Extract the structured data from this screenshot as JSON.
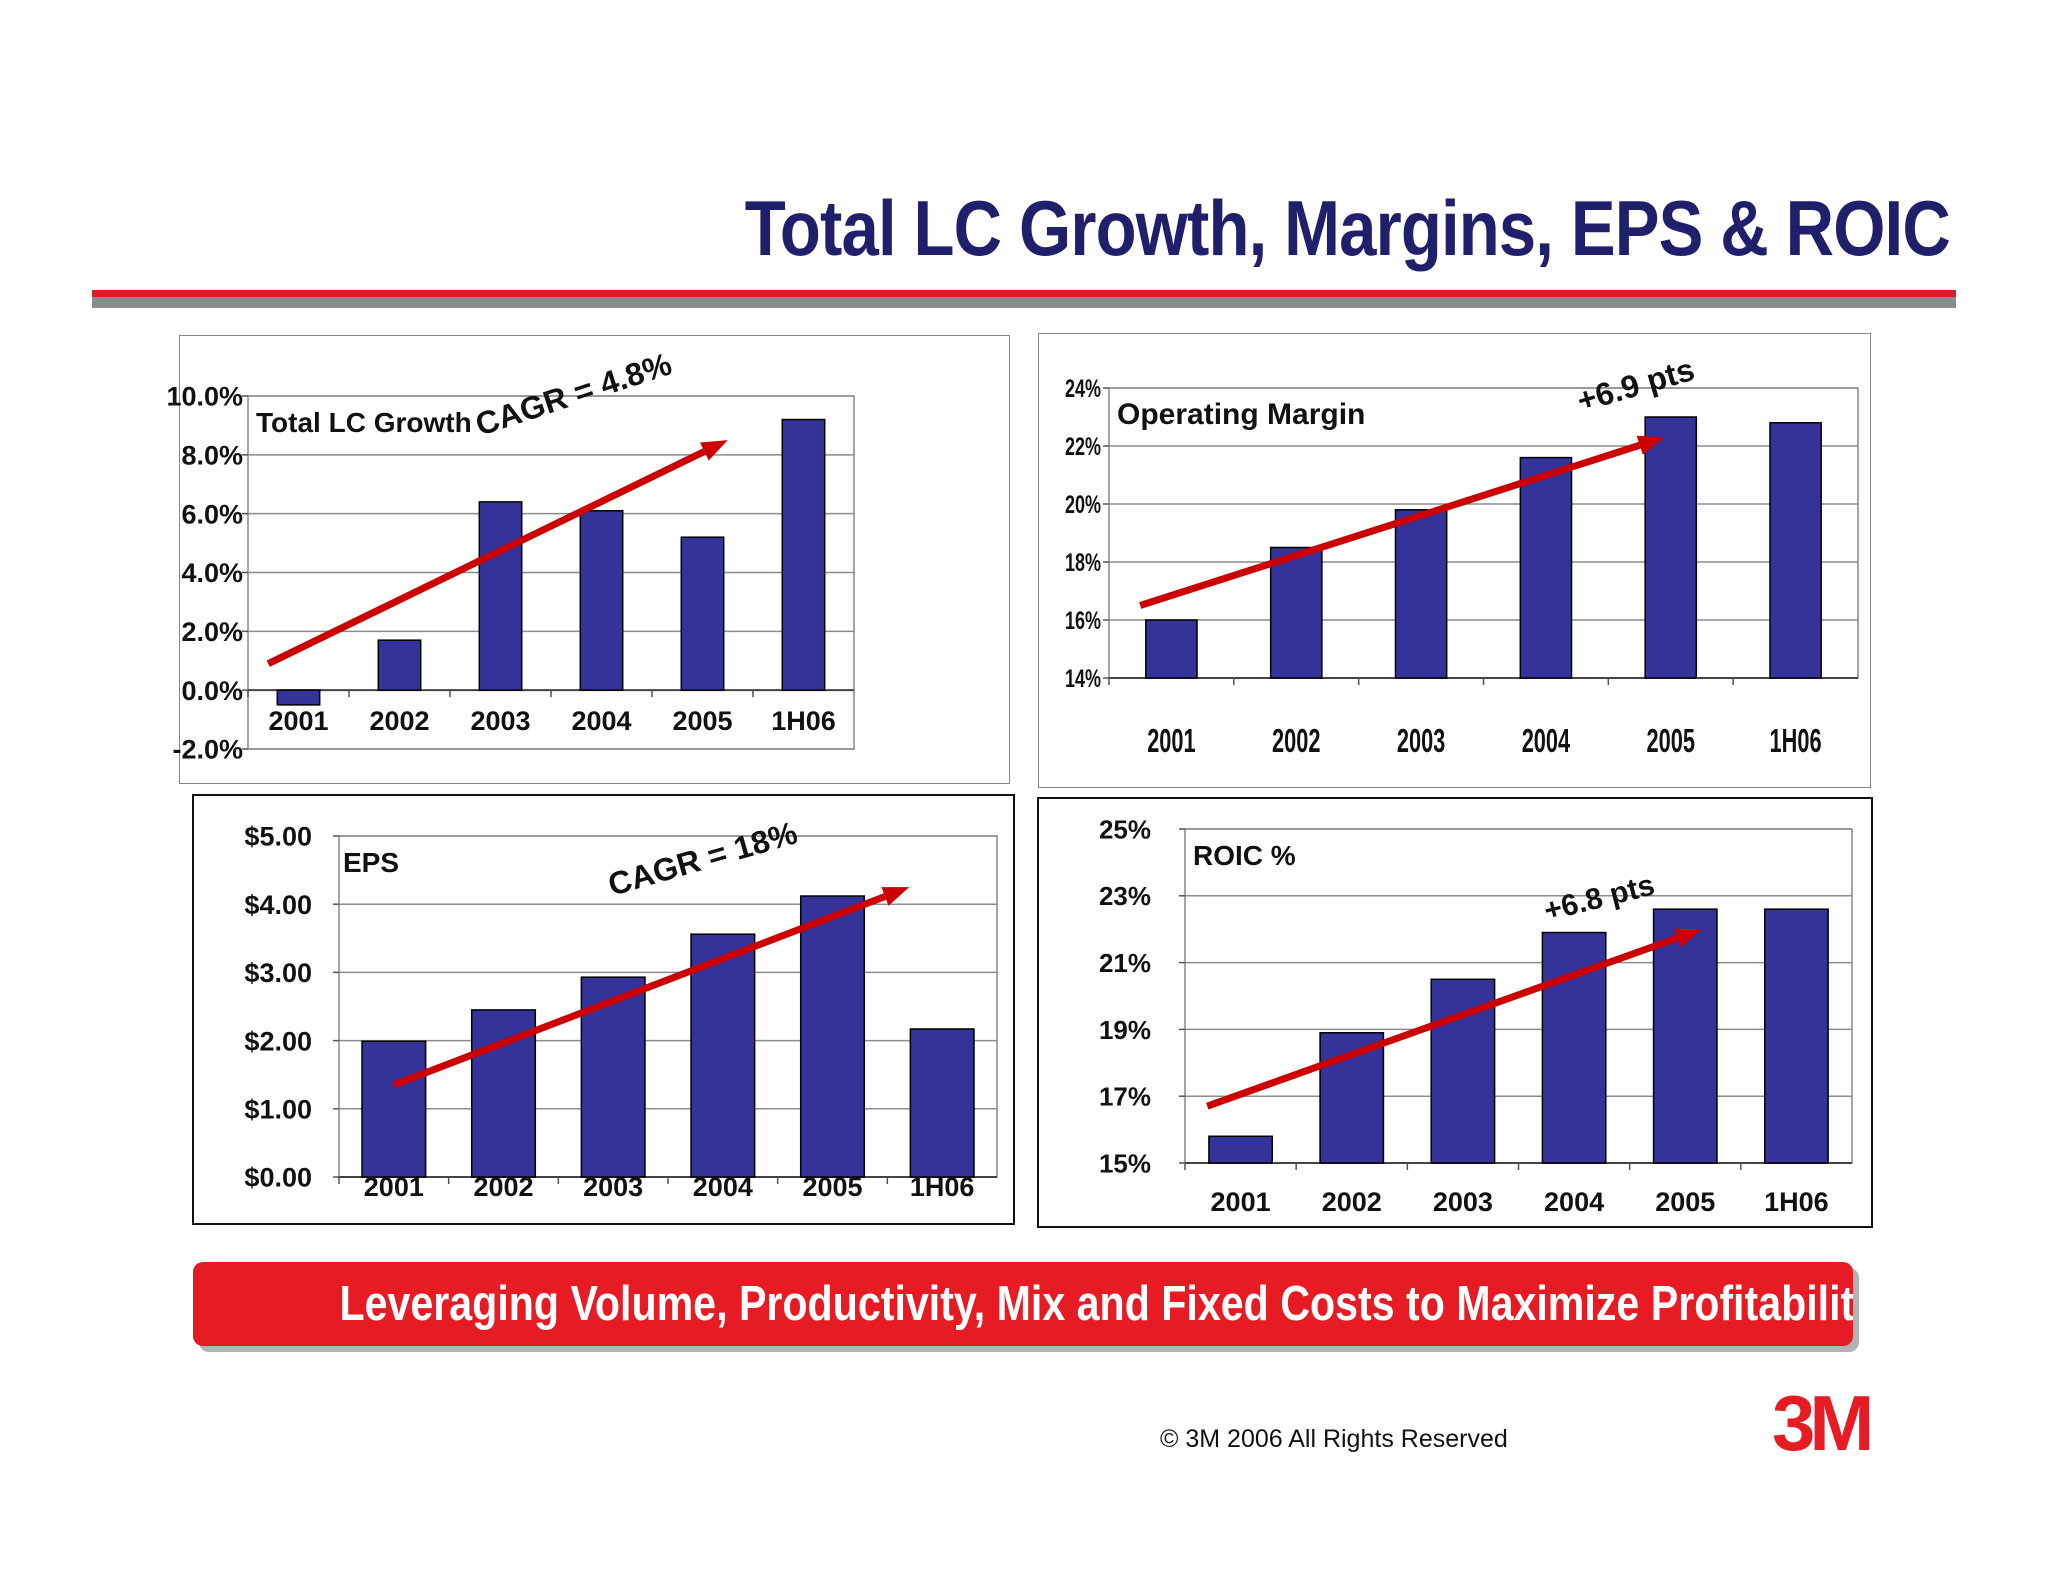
{
  "title": "Total LC Growth, Margins, EPS & ROIC",
  "banner": "Leveraging Volume, Productivity, Mix and Fixed Costs to Maximize Profitability",
  "copyright": "© 3M 2006 All Rights Reserved",
  "logo_text": "3M",
  "colors": {
    "bar": "#333399",
    "arrow": "#cc0000",
    "title": "#1f1f6b",
    "banner": "#e61b23"
  },
  "chart_data": [
    {
      "id": "lc-growth",
      "type": "bar",
      "title": "Total LC Growth",
      "categories": [
        "2001",
        "2002",
        "2003",
        "2004",
        "2005",
        "1H06"
      ],
      "values": [
        -0.5,
        1.7,
        6.4,
        6.1,
        5.2,
        9.2
      ],
      "ylim": [
        -2,
        10
      ],
      "yticks": [
        -2,
        0,
        2,
        4,
        6,
        8,
        10
      ],
      "ytick_labels": [
        "-2.0%",
        "0.0%",
        "2.0%",
        "4.0%",
        "6.0%",
        "8.0%",
        "10.0%"
      ],
      "annotation": "CAGR = 4.8%",
      "trend": [
        [
          0.2,
          0.9
        ],
        [
          4.75,
          8.5
        ]
      ]
    },
    {
      "id": "operating-margin",
      "type": "bar",
      "title": "Operating Margin",
      "categories": [
        "2001",
        "2002",
        "2003",
        "2004",
        "2005",
        "1H06"
      ],
      "values": [
        16.0,
        18.5,
        19.8,
        21.6,
        23.0,
        22.8
      ],
      "ylim": [
        14,
        24
      ],
      "yticks": [
        14,
        16,
        18,
        20,
        22,
        24
      ],
      "ytick_labels": [
        "14%",
        "16%",
        "18%",
        "20%",
        "22%",
        "24%"
      ],
      "annotation": "+6.9 pts",
      "trend": [
        [
          0.25,
          16.5
        ],
        [
          4.45,
          22.3
        ]
      ]
    },
    {
      "id": "eps",
      "type": "bar",
      "title": "EPS",
      "categories": [
        "2001",
        "2002",
        "2003",
        "2004",
        "2005",
        "1H06"
      ],
      "values": [
        1.99,
        2.45,
        2.93,
        3.56,
        4.12,
        2.17
      ],
      "ylim": [
        0,
        5
      ],
      "yticks": [
        0,
        1,
        2,
        3,
        4,
        5
      ],
      "ytick_labels": [
        "$0.00",
        "$1.00",
        "$2.00",
        "$3.00",
        "$4.00",
        "$5.00"
      ],
      "annotation": "CAGR = 18%",
      "trend": [
        [
          0.5,
          1.35
        ],
        [
          5.2,
          4.25
        ]
      ]
    },
    {
      "id": "roic",
      "type": "bar",
      "title": "ROIC %",
      "categories": [
        "2001",
        "2002",
        "2003",
        "2004",
        "2005",
        "1H06"
      ],
      "values": [
        15.8,
        18.9,
        20.5,
        21.9,
        22.6,
        22.6
      ],
      "ylim": [
        15,
        25
      ],
      "yticks": [
        15,
        17,
        19,
        21,
        23,
        25
      ],
      "ytick_labels": [
        "15%",
        "17%",
        "19%",
        "21%",
        "23%",
        "25%"
      ],
      "annotation": "+6.8 pts",
      "trend": [
        [
          0.2,
          16.7
        ],
        [
          4.65,
          22
        ]
      ]
    }
  ]
}
